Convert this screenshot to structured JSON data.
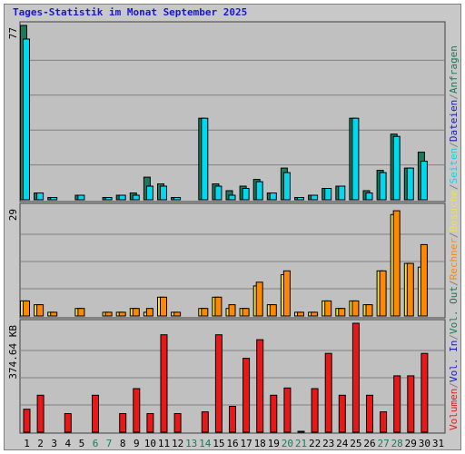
{
  "chart_data": {
    "type": "bar",
    "title": "Tages-Statistik im Monat September 2025",
    "categories": [
      "1",
      "2",
      "3",
      "4",
      "5",
      "6",
      "7",
      "8",
      "9",
      "10",
      "11",
      "12",
      "13",
      "14",
      "15",
      "16",
      "17",
      "18",
      "19",
      "20",
      "21",
      "22",
      "23",
      "24",
      "25",
      "26",
      "27",
      "28",
      "29",
      "30",
      "31"
    ],
    "weekend_days": [
      "6",
      "7",
      "13",
      "14",
      "20",
      "21",
      "27",
      "28"
    ],
    "panels": [
      {
        "id": "requests-pages-files",
        "max_label": "77",
        "ylim": [
          0,
          77
        ],
        "series": [
          {
            "name": "Anfragen",
            "color": "#1a7a5a",
            "values": [
              77,
              3,
              1,
              0,
              2,
              0,
              1,
              2,
              3,
              10,
              7,
              1,
              0,
              36,
              7,
              4,
              6,
              9,
              3,
              14,
              1,
              2,
              5,
              6,
              36,
              4,
              13,
              29,
              14,
              21,
              0
            ]
          },
          {
            "name": "Dateien",
            "color": "#00d8f0",
            "values": [
              71,
              3,
              1,
              0,
              2,
              0,
              1,
              2,
              2,
              6,
              6,
              1,
              0,
              36,
              6,
              2,
              5,
              8,
              3,
              12,
              1,
              2,
              5,
              6,
              36,
              3,
              12,
              28,
              14,
              17,
              0
            ]
          }
        ]
      },
      {
        "id": "visits-computer",
        "max_label": "29",
        "ylim": [
          0,
          29
        ],
        "series": [
          {
            "name": "Besuche",
            "color": "#f0e040",
            "values": [
              4,
              3,
              1,
              0,
              2,
              0,
              1,
              1,
              2,
              1,
              5,
              1,
              0,
              2,
              5,
              2,
              2,
              8,
              3,
              11,
              1,
              1,
              4,
              2,
              4,
              3,
              12,
              27,
              14,
              13,
              0
            ]
          },
          {
            "name": "Rechner",
            "color": "#ff8800",
            "values": [
              4,
              3,
              1,
              0,
              2,
              0,
              1,
              1,
              2,
              2,
              5,
              1,
              0,
              2,
              5,
              3,
              2,
              9,
              3,
              12,
              1,
              1,
              4,
              2,
              4,
              3,
              12,
              28,
              14,
              19,
              0
            ]
          }
        ]
      },
      {
        "id": "volume",
        "max_label": "374.64 KB",
        "ylim": [
          0,
          374.64
        ],
        "series": [
          {
            "name": "Volumen",
            "color": "#e81818",
            "values": [
              79,
              127,
              0,
              64,
              0,
              127,
              0,
              64,
              150,
              64,
              335,
              64,
              0,
              70,
              335,
              89,
              254,
              318,
              127,
              152,
              3,
              150,
              271,
              127,
              374.64,
              127,
              70,
              194,
              194,
              271,
              0
            ]
          }
        ]
      }
    ],
    "right_legend": [
      {
        "text": "Volumen",
        "color": "#e81818"
      },
      {
        "text": "Vol. In",
        "color": "#1818c8"
      },
      {
        "text": "Vol. Out",
        "color": "#1a7a5a"
      },
      {
        "text": "Rechner",
        "color": "#ff8800"
      },
      {
        "text": "Besuche",
        "color": "#f0e040"
      },
      {
        "text": "Seiten",
        "color": "#00d8f0"
      },
      {
        "text": "Dateien",
        "color": "#1818c8"
      },
      {
        "text": "Anfragen",
        "color": "#1a7a5a"
      }
    ],
    "separator": "/",
    "legend_placement": "right, vertical",
    "grid": true,
    "colors": {
      "background": "#c0c0c0",
      "gridline": "#808080",
      "title": "#1818c8",
      "weekday_label": "#000000",
      "weekend_label": "#1a7a5a",
      "separator": "#808080"
    }
  }
}
